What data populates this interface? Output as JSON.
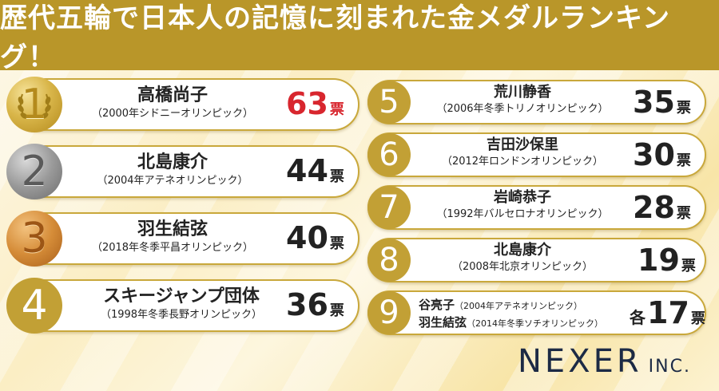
{
  "title": "歴代五輪で日本人の記憶に刻まれた金メダルランキング！",
  "left_rankings": [
    {
      "rank": "1",
      "name": "高橋尚子",
      "event": "（2000年シドニーオリンピック）",
      "votes": "63",
      "unit": "票",
      "medal": "gold"
    },
    {
      "rank": "2",
      "name": "北島康介",
      "event": "（2004年アテネオリンピック）",
      "votes": "44",
      "unit": "票",
      "medal": "silver"
    },
    {
      "rank": "3",
      "name": "羽生結弦",
      "event": "（2018年冬季平昌オリンピック）",
      "votes": "40",
      "unit": "票",
      "medal": "bronze"
    },
    {
      "rank": "4",
      "name": "スキージャンプ団体",
      "event": "（1998年冬季長野オリンピック）",
      "votes": "36",
      "unit": "票",
      "medal": "plain"
    }
  ],
  "right_rankings": [
    {
      "rank": "5",
      "name": "荒川静香",
      "event": "（2006年冬季トリノオリンピック）",
      "votes": "35",
      "unit": "票"
    },
    {
      "rank": "6",
      "name": "吉田沙保里",
      "event": "（2012年ロンドンオリンピック）",
      "votes": "30",
      "unit": "票"
    },
    {
      "rank": "7",
      "name": "岩崎恭子",
      "event": "（1992年バルセロナオリンピック）",
      "votes": "28",
      "unit": "票"
    },
    {
      "rank": "8",
      "name": "北島康介",
      "event": "（2008年北京オリンピック）",
      "votes": "19",
      "unit": "票"
    }
  ],
  "tie": {
    "rank": "9",
    "entries": [
      {
        "name": "谷亮子",
        "event": "（2004年アテネオリンピック）"
      },
      {
        "name": "羽生結弦",
        "event": "（2014年冬季ソチオリンピック）"
      }
    ],
    "prefix": "各",
    "votes": "17",
    "unit": "票"
  },
  "logo": {
    "main": "NEXER",
    "suffix": "INC."
  },
  "colors": {
    "gold_bar": "#b99629",
    "highlight_red": "#d8262e",
    "text": "#222222",
    "logo": "#1c2a45"
  }
}
